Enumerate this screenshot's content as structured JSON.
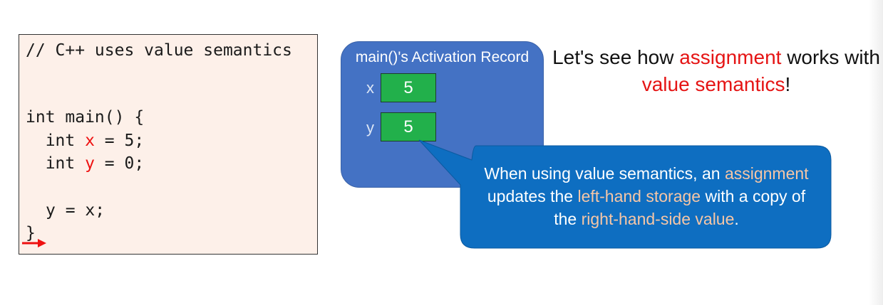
{
  "code": {
    "comment": "// C++ uses value semantics",
    "main_open": "int main() {",
    "x_decl": {
      "pre": "  int ",
      "var": "x",
      "post": " = 5;"
    },
    "y_decl": {
      "pre": "  int ",
      "var": "y",
      "post": " = 0;"
    },
    "assign": "y = x;",
    "close": "}"
  },
  "activation_record": {
    "title": "main()'s Activation Record",
    "vars": [
      {
        "name": "x",
        "value": "5"
      },
      {
        "name": "y",
        "value": "5"
      }
    ]
  },
  "heading": {
    "part1": "Let's see how ",
    "highlight1": "assignment",
    "part2": " works with ",
    "highlight2": "value semantics",
    "part3": "!"
  },
  "callout": {
    "t1": "When using value semantics, an ",
    "h1": "assignment",
    "t2": " updates the ",
    "h2": "left-hand storage",
    "t3": " with a copy of the ",
    "h3": "right-hand-side value",
    "t4": "."
  },
  "colors": {
    "accent_red": "#e51414",
    "ar_blue": "#4472c4",
    "callout_blue": "#0e6ec1",
    "value_green": "#22b04b",
    "highlight_peach": "#f6c6a6"
  }
}
